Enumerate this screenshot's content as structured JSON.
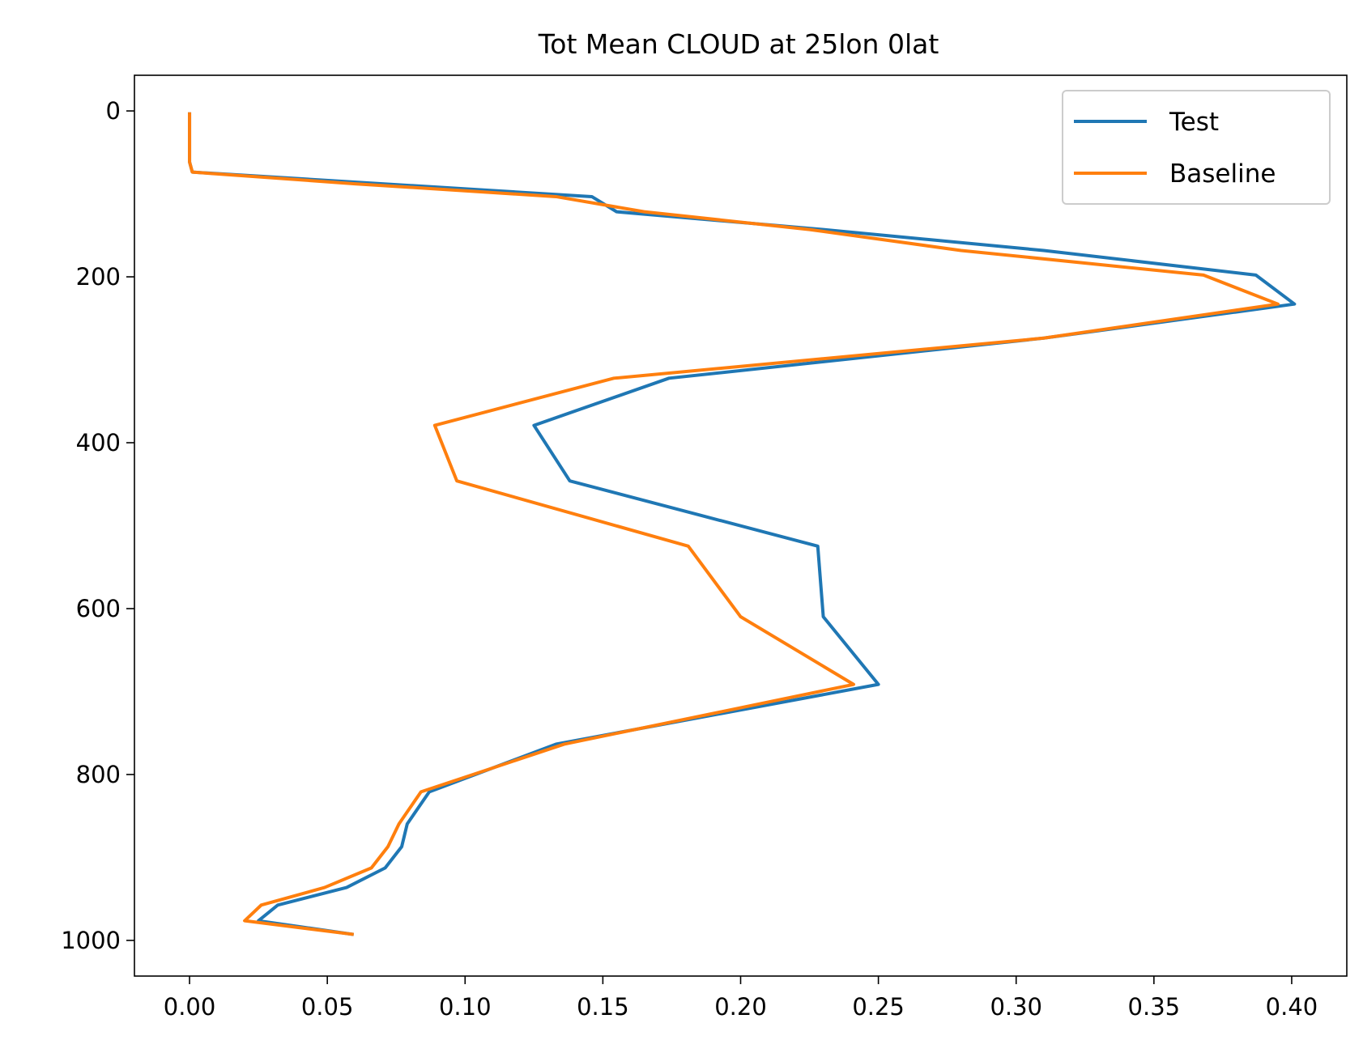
{
  "chart_data": {
    "type": "line",
    "title": "Tot Mean CLOUD at 25lon 0lat",
    "xlabel": "",
    "ylabel": "",
    "xlim": [
      -0.02,
      0.42
    ],
    "ylim": [
      1043,
      -43
    ],
    "y_inverted": true,
    "grid": false,
    "legend_position": "upper right",
    "xticks": [
      0.0,
      0.05,
      0.1,
      0.15,
      0.2,
      0.25,
      0.3,
      0.35,
      0.4
    ],
    "xtick_labels": [
      "0.00",
      "0.05",
      "0.10",
      "0.15",
      "0.20",
      "0.25",
      "0.30",
      "0.35",
      "0.40"
    ],
    "yticks": [
      0,
      200,
      400,
      600,
      800,
      1000
    ],
    "ytick_labels": [
      "0",
      "200",
      "400",
      "600",
      "800",
      "1000"
    ],
    "y": [
      3.64,
      7.59,
      14.36,
      24.61,
      35.92,
      43.19,
      51.68,
      61.52,
      73.75,
      87.82,
      103.32,
      121.55,
      142.99,
      168.23,
      197.91,
      232.83,
      273.91,
      322.24,
      379.1,
      445.99,
      524.69,
      609.78,
      691.39,
      763.4,
      820.86,
      859.53,
      887.02,
      912.64,
      936.2,
      957.49,
      976.33,
      992.56
    ],
    "series": [
      {
        "name": "Test",
        "color": "#1f77b4",
        "values": [
          0.0,
          0.0,
          0.0,
          0.0,
          0.0,
          0.0,
          0.0,
          0.0,
          0.001,
          0.07,
          0.146,
          0.155,
          0.23,
          0.31,
          0.387,
          0.401,
          0.31,
          0.174,
          0.125,
          0.138,
          0.228,
          0.23,
          0.25,
          0.133,
          0.087,
          0.079,
          0.077,
          0.071,
          0.057,
          0.032,
          0.025,
          0.059
        ]
      },
      {
        "name": "Baseline",
        "color": "#ff7f0e",
        "values": [
          0.0,
          0.0,
          0.0,
          0.0,
          0.0,
          0.0,
          0.0,
          0.0,
          0.001,
          0.06,
          0.133,
          0.165,
          0.225,
          0.28,
          0.368,
          0.395,
          0.31,
          0.154,
          0.089,
          0.097,
          0.181,
          0.2,
          0.241,
          0.136,
          0.084,
          0.076,
          0.072,
          0.066,
          0.049,
          0.026,
          0.02,
          0.059
        ]
      }
    ]
  }
}
